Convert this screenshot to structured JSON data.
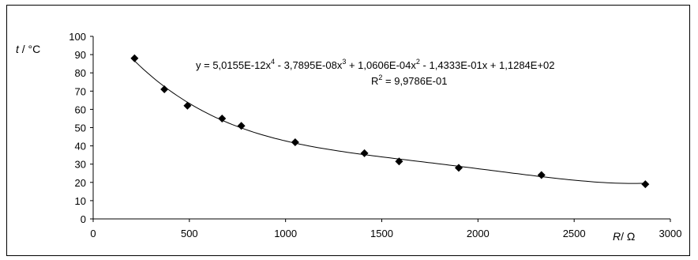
{
  "chart_data": {
    "type": "scatter",
    "title": "",
    "xlabel_var": "R",
    "xlabel_unit": "/ Ω",
    "ylabel_var": "t",
    "ylabel_unit": " / °C",
    "xlim": [
      0,
      3000
    ],
    "ylim": [
      0,
      100
    ],
    "xticks": [
      0,
      500,
      1000,
      1500,
      2000,
      2500,
      3000
    ],
    "yticks": [
      0,
      10,
      20,
      30,
      40,
      50,
      60,
      70,
      80,
      90,
      100
    ],
    "grid": false,
    "marker": "diamond",
    "marker_color": "#000000",
    "trendline": {
      "type": "polynomial",
      "order": 4,
      "coefficients": [
        5.0155e-12,
        -3.7895e-08,
        0.00010606,
        -0.14333,
        112.84
      ],
      "equation_parts": {
        "y": "y = 5,0155E-12x",
        "e4": "4",
        "p3": " - 3,7895E-08x",
        "e3": "3",
        "p2": " + 1,0606E-04x",
        "e2": "2",
        "p1": " - 1,4333E-01x + 1,1284E+02"
      },
      "r2_parts": {
        "r": "R",
        "e": "2",
        "rest": " = 9,9786E-01"
      }
    },
    "points": [
      {
        "x": 215,
        "y": 88
      },
      {
        "x": 370,
        "y": 71
      },
      {
        "x": 490,
        "y": 62
      },
      {
        "x": 670,
        "y": 55
      },
      {
        "x": 770,
        "y": 51
      },
      {
        "x": 1050,
        "y": 42
      },
      {
        "x": 1410,
        "y": 36
      },
      {
        "x": 1590,
        "y": 31.5
      },
      {
        "x": 1900,
        "y": 28
      },
      {
        "x": 2330,
        "y": 24
      },
      {
        "x": 2870,
        "y": 19
      }
    ]
  }
}
